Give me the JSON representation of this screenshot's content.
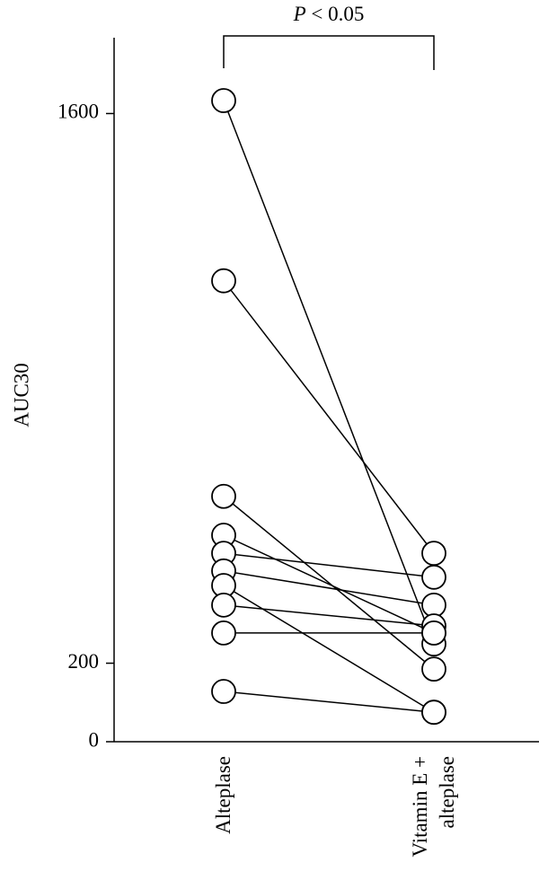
{
  "chart_data": {
    "type": "paired-dot",
    "annotation": {
      "symbol": "P",
      "text": "< 0.05"
    },
    "y_label": "AUC30",
    "categories": [
      "Alteplase",
      "Vitamin E + alteplase"
    ],
    "ylim": [
      0,
      1800
    ],
    "yticks": [
      0,
      200,
      1600
    ],
    "color": "#000000",
    "series": [
      {
        "values": [
          1633,
          249
        ]
      },
      {
        "values": [
          1174,
          480
        ]
      },
      {
        "values": [
          625,
          185
        ]
      },
      {
        "values": [
          526,
          277
        ]
      },
      {
        "values": [
          480,
          419
        ]
      },
      {
        "values": [
          435,
          348
        ]
      },
      {
        "values": [
          398,
          75
        ]
      },
      {
        "values": [
          348,
          295
        ]
      },
      {
        "values": [
          277,
          277
        ]
      },
      {
        "values": [
          128,
          75
        ]
      }
    ]
  }
}
